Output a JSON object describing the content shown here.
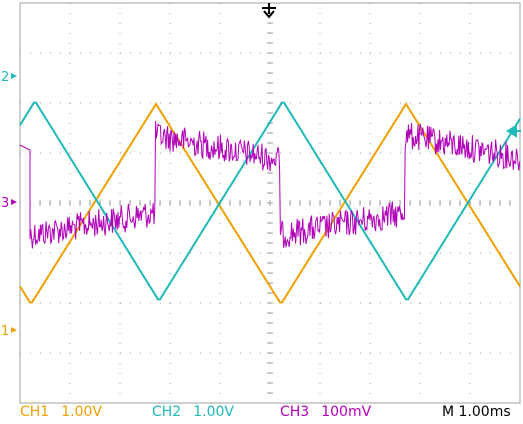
{
  "colors": {
    "background": "#ffffff",
    "grid": "#a0a0a0",
    "ch1": "#f0a000",
    "ch2": "#20b8b8",
    "ch3": "#b000b8",
    "trigger": "#000000"
  },
  "markers": {
    "ch1": "1",
    "ch2": "2",
    "ch3": "3",
    "trigger_marker": "arrow-down-icon",
    "trigger_level_marker": "arrow-left-icon"
  },
  "status": {
    "ch1_name": "CH1",
    "ch1_scale": "1.00V",
    "ch2_name": "CH2",
    "ch2_scale": "1.00V",
    "ch3_name": "CH3",
    "ch3_scale": "100mV",
    "timebase": "M 1.00ms"
  }
}
